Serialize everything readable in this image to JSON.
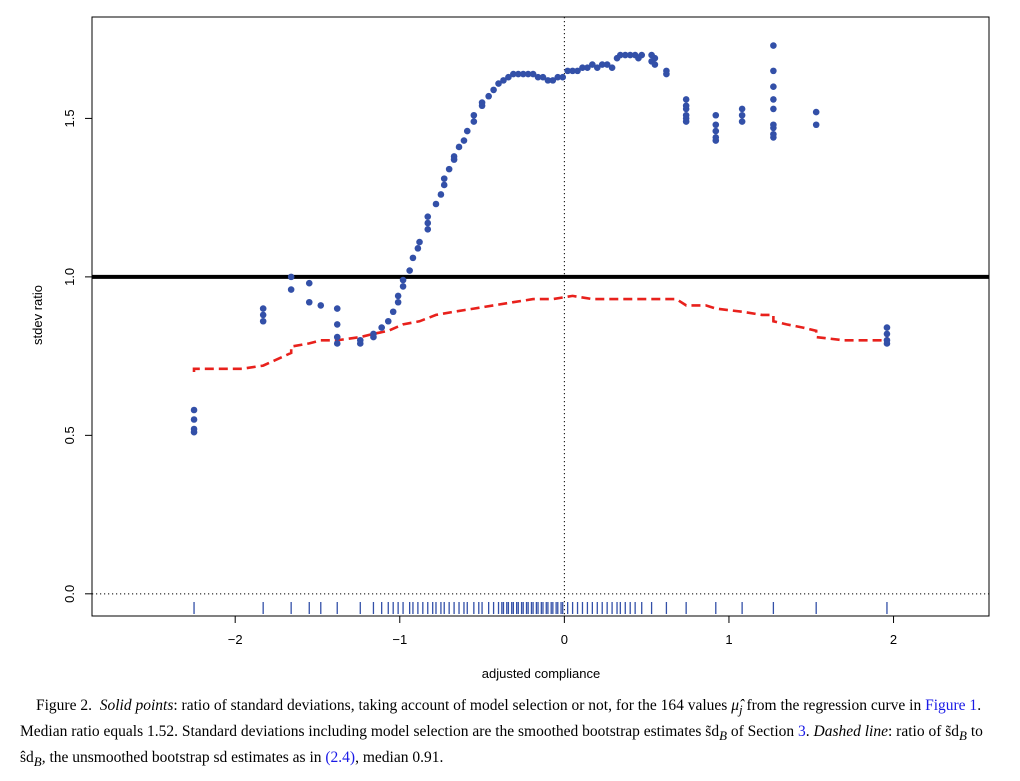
{
  "chart_data": {
    "type": "scatter",
    "xlabel": "adjusted compliance",
    "ylabel": "stdev ratio",
    "xlim": [
      -2.87,
      2.58
    ],
    "ylim": [
      -0.07,
      1.82
    ],
    "x_ticks": [
      -2,
      -1,
      0,
      1,
      2
    ],
    "x_tick_labels": [
      "−2",
      "−1",
      "0",
      "1",
      "2"
    ],
    "y_ticks": [
      0.0,
      0.5,
      1.0,
      1.5
    ],
    "y_tick_labels": [
      "0.0",
      "0.5",
      "1.0",
      "1.5"
    ],
    "reference_lines": [
      {
        "orientation": "horizontal",
        "value": 1.0,
        "style": "solid-thick",
        "color": "#000000"
      },
      {
        "orientation": "horizontal",
        "value": 0.0,
        "style": "dotted",
        "color": "#000000"
      },
      {
        "orientation": "vertical",
        "value": 0.0,
        "style": "dotted",
        "color": "#000000"
      }
    ],
    "point_color": "#3350a8",
    "dashed_color": "#e8211c",
    "rug_color": "#3350a8",
    "grid": false,
    "series": [
      {
        "style": "points",
        "points": [
          [
            -2.25,
            0.51
          ],
          [
            -2.25,
            0.52
          ],
          [
            -2.25,
            0.55
          ],
          [
            -2.25,
            0.58
          ],
          [
            -1.83,
            0.86
          ],
          [
            -1.83,
            0.88
          ],
          [
            -1.83,
            0.9
          ],
          [
            -1.66,
            0.96
          ],
          [
            -1.66,
            1.0
          ],
          [
            -1.55,
            0.92
          ],
          [
            -1.55,
            0.98
          ],
          [
            -1.48,
            0.91
          ],
          [
            -1.38,
            0.79
          ],
          [
            -1.38,
            0.81
          ],
          [
            -1.38,
            0.85
          ],
          [
            -1.38,
            0.9
          ],
          [
            -1.24,
            0.79
          ],
          [
            -1.24,
            0.8
          ],
          [
            -1.16,
            0.81
          ],
          [
            -1.16,
            0.82
          ],
          [
            -1.11,
            0.84
          ],
          [
            -1.07,
            0.86
          ],
          [
            -1.04,
            0.89
          ],
          [
            -1.01,
            0.92
          ],
          [
            -1.01,
            0.94
          ],
          [
            -0.98,
            0.97
          ],
          [
            -0.98,
            0.99
          ],
          [
            -0.94,
            1.02
          ],
          [
            -0.92,
            1.06
          ],
          [
            -0.89,
            1.09
          ],
          [
            -0.88,
            1.11
          ],
          [
            -0.83,
            1.15
          ],
          [
            -0.83,
            1.17
          ],
          [
            -0.83,
            1.19
          ],
          [
            -0.78,
            1.23
          ],
          [
            -0.75,
            1.26
          ],
          [
            -0.73,
            1.29
          ],
          [
            -0.73,
            1.31
          ],
          [
            -0.7,
            1.34
          ],
          [
            -0.67,
            1.37
          ],
          [
            -0.67,
            1.38
          ],
          [
            -0.64,
            1.41
          ],
          [
            -0.61,
            1.43
          ],
          [
            -0.59,
            1.46
          ],
          [
            -0.55,
            1.49
          ],
          [
            -0.55,
            1.51
          ],
          [
            -0.5,
            1.54
          ],
          [
            -0.5,
            1.55
          ],
          [
            -0.46,
            1.57
          ],
          [
            -0.43,
            1.59
          ],
          [
            -0.4,
            1.61
          ],
          [
            -0.37,
            1.62
          ],
          [
            -0.34,
            1.63
          ],
          [
            -0.31,
            1.64
          ],
          [
            -0.28,
            1.64
          ],
          [
            -0.25,
            1.64
          ],
          [
            -0.22,
            1.64
          ],
          [
            -0.19,
            1.64
          ],
          [
            -0.16,
            1.63
          ],
          [
            -0.13,
            1.63
          ],
          [
            -0.1,
            1.62
          ],
          [
            -0.07,
            1.62
          ],
          [
            -0.04,
            1.63
          ],
          [
            -0.01,
            1.63
          ],
          [
            0.02,
            1.65
          ],
          [
            0.05,
            1.65
          ],
          [
            0.08,
            1.65
          ],
          [
            0.11,
            1.66
          ],
          [
            0.14,
            1.66
          ],
          [
            0.17,
            1.67
          ],
          [
            0.2,
            1.66
          ],
          [
            0.23,
            1.67
          ],
          [
            0.26,
            1.67
          ],
          [
            0.29,
            1.66
          ],
          [
            0.32,
            1.69
          ],
          [
            0.34,
            1.7
          ],
          [
            0.37,
            1.7
          ],
          [
            0.4,
            1.7
          ],
          [
            0.43,
            1.7
          ],
          [
            0.45,
            1.69
          ],
          [
            0.47,
            1.7
          ],
          [
            0.53,
            1.7
          ],
          [
            0.53,
            1.68
          ],
          [
            0.55,
            1.69
          ],
          [
            0.55,
            1.67
          ],
          [
            0.62,
            1.64
          ],
          [
            0.62,
            1.65
          ],
          [
            0.74,
            1.49
          ],
          [
            0.74,
            1.5
          ],
          [
            0.74,
            1.51
          ],
          [
            0.74,
            1.53
          ],
          [
            0.74,
            1.54
          ],
          [
            0.74,
            1.56
          ],
          [
            0.92,
            1.43
          ],
          [
            0.92,
            1.44
          ],
          [
            0.92,
            1.46
          ],
          [
            0.92,
            1.48
          ],
          [
            0.92,
            1.51
          ],
          [
            1.08,
            1.49
          ],
          [
            1.08,
            1.51
          ],
          [
            1.08,
            1.53
          ],
          [
            1.27,
            1.44
          ],
          [
            1.27,
            1.45
          ],
          [
            1.27,
            1.47
          ],
          [
            1.27,
            1.48
          ],
          [
            1.27,
            1.53
          ],
          [
            1.27,
            1.56
          ],
          [
            1.27,
            1.6
          ],
          [
            1.27,
            1.65
          ],
          [
            1.27,
            1.73
          ],
          [
            1.53,
            1.48
          ],
          [
            1.53,
            1.52
          ],
          [
            1.96,
            0.79
          ],
          [
            1.96,
            0.8
          ],
          [
            1.96,
            0.82
          ],
          [
            1.96,
            0.84
          ]
        ]
      },
      {
        "style": "dashed",
        "points": [
          [
            -2.25,
            0.7
          ],
          [
            -2.25,
            0.71
          ],
          [
            -2.17,
            0.71
          ],
          [
            -1.96,
            0.71
          ],
          [
            -1.83,
            0.72
          ],
          [
            -1.66,
            0.76
          ],
          [
            -1.66,
            0.78
          ],
          [
            -1.55,
            0.79
          ],
          [
            -1.48,
            0.8
          ],
          [
            -1.38,
            0.8
          ],
          [
            -1.24,
            0.81
          ],
          [
            -1.16,
            0.82
          ],
          [
            -1.07,
            0.83
          ],
          [
            -0.98,
            0.85
          ],
          [
            -0.88,
            0.86
          ],
          [
            -0.78,
            0.88
          ],
          [
            -0.67,
            0.89
          ],
          [
            -0.55,
            0.9
          ],
          [
            -0.43,
            0.91
          ],
          [
            -0.31,
            0.92
          ],
          [
            -0.19,
            0.93
          ],
          [
            -0.07,
            0.93
          ],
          [
            0.05,
            0.94
          ],
          [
            0.17,
            0.93
          ],
          [
            0.29,
            0.93
          ],
          [
            0.4,
            0.93
          ],
          [
            0.55,
            0.93
          ],
          [
            0.62,
            0.93
          ],
          [
            0.68,
            0.93
          ],
          [
            0.74,
            0.91
          ],
          [
            0.86,
            0.91
          ],
          [
            0.92,
            0.9
          ],
          [
            1.08,
            0.89
          ],
          [
            1.2,
            0.88
          ],
          [
            1.27,
            0.88
          ],
          [
            1.27,
            0.86
          ],
          [
            1.35,
            0.85
          ],
          [
            1.45,
            0.84
          ],
          [
            1.53,
            0.83
          ],
          [
            1.53,
            0.81
          ],
          [
            1.7,
            0.8
          ],
          [
            1.96,
            0.8
          ],
          [
            1.96,
            0.82
          ]
        ]
      }
    ],
    "rug_x": [
      -2.25,
      -1.83,
      -1.66,
      -1.55,
      -1.48,
      -1.38,
      -1.24,
      -1.16,
      -1.11,
      -1.07,
      -1.04,
      -1.01,
      -0.98,
      -0.94,
      -0.92,
      -0.89,
      -0.86,
      -0.83,
      -0.8,
      -0.78,
      -0.75,
      -0.73,
      -0.7,
      -0.67,
      -0.64,
      -0.61,
      -0.59,
      -0.55,
      -0.52,
      -0.5,
      -0.46,
      -0.43,
      -0.4,
      -0.38,
      -0.37,
      -0.35,
      -0.34,
      -0.32,
      -0.31,
      -0.29,
      -0.28,
      -0.26,
      -0.25,
      -0.23,
      -0.22,
      -0.2,
      -0.19,
      -0.17,
      -0.16,
      -0.14,
      -0.13,
      -0.11,
      -0.1,
      -0.08,
      -0.07,
      -0.05,
      -0.04,
      -0.02,
      -0.01,
      0.02,
      0.05,
      0.08,
      0.11,
      0.14,
      0.17,
      0.2,
      0.23,
      0.26,
      0.29,
      0.32,
      0.34,
      0.37,
      0.4,
      0.43,
      0.47,
      0.53,
      0.62,
      0.74,
      0.92,
      1.08,
      1.27,
      1.53,
      1.96
    ]
  },
  "caption": {
    "fig_label": "Figure 2.",
    "solid_label": "Solid points",
    "text1": ": ratio of standard deviations, taking account of model selection or not, for the 164 values ",
    "mu_symbol": "μ̂",
    "mu_sub": "j",
    "text2": " from the regression curve in ",
    "fig_ref": "Figure 1",
    "text3": ". Median ratio equals 1.52. Standard deviations including model selection are the smoothed bootstrap estimates ",
    "sd_tilde": "s̃d",
    "sub_B": "B",
    "text4": " of Section ",
    "section_ref": "3",
    "text5": ". ",
    "dashed_label": "Dashed line",
    "text6": ": ratio of ",
    "sd_tilde2": "s̃d",
    "text7": " to ",
    "sd_hat": "ŝd",
    "text8": ", the unsmoothed bootstrap sd estimates as in ",
    "eq_ref": "(2.4)",
    "text9": ", median 0.91."
  }
}
